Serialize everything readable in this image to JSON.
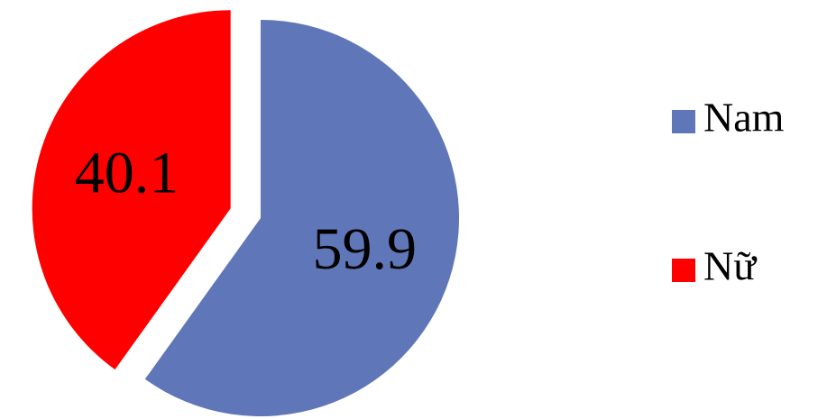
{
  "chart_data": {
    "type": "pie",
    "categories": [
      "Nam",
      "Nữ"
    ],
    "values": [
      59.9,
      40.1
    ],
    "colors": [
      "#5f77b8",
      "#ff0000"
    ],
    "legend": "right"
  }
}
